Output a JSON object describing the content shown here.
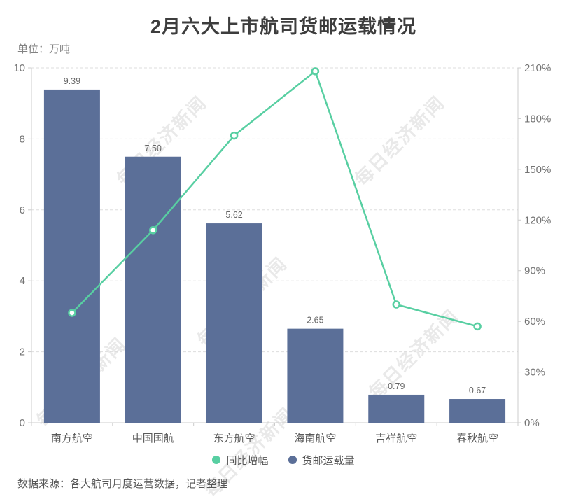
{
  "title": "2月六大上市航司货邮运载情况",
  "unit_label": "单位：万吨",
  "source_note": "数据来源：各大航司月度运营数据，记者整理",
  "watermark_text": "每日经济新闻",
  "colors": {
    "bar": "#5b6f98",
    "line": "#58cfa2",
    "grid": "#dddddd",
    "axis_line": "#cccccc",
    "axis_tick_label": "#737373",
    "category_label": "#5a5a5a",
    "bar_value_label": "#666666",
    "background": "#ffffff"
  },
  "legend": {
    "items": [
      {
        "label": "同比增幅",
        "series": "line"
      },
      {
        "label": "货邮运载量",
        "series": "bar"
      }
    ]
  },
  "chart_data": {
    "type": "bar",
    "combo": "bar+line dual axis",
    "title": "2月六大上市航司货邮运载情况",
    "unit": "万吨",
    "categories": [
      "南方航空",
      "中国国航",
      "东方航空",
      "海南航空",
      "吉祥航空",
      "春秋航空"
    ],
    "series": [
      {
        "name": "货邮运载量",
        "type": "bar",
        "axis": "left",
        "unit": "万吨",
        "values": [
          9.39,
          7.5,
          5.62,
          2.65,
          0.79,
          0.67
        ],
        "labels": [
          "9.39",
          "7.50",
          "5.62",
          "2.65",
          "0.79",
          "0.67"
        ],
        "color": "#5b6f98"
      },
      {
        "name": "同比增幅",
        "type": "line",
        "axis": "right",
        "unit": "%",
        "values": [
          65,
          114,
          170,
          208,
          70,
          57
        ],
        "color": "#58cfa2"
      }
    ],
    "left_axis": {
      "min": 0,
      "max": 10,
      "tick_values": [
        0,
        2,
        4,
        6,
        8,
        10
      ],
      "tick_labels": [
        "0",
        "2",
        "4",
        "6",
        "8",
        "10"
      ]
    },
    "right_axis": {
      "min": 0,
      "max": 210,
      "tick_values": [
        0,
        30,
        60,
        90,
        120,
        150,
        180,
        210
      ],
      "tick_labels": [
        "0%",
        "30%",
        "60%",
        "90%",
        "120%",
        "150%",
        "180%",
        "210%"
      ]
    },
    "grid": "dashed horizontal lines at left-axis ticks",
    "legend_position": "bottom center"
  }
}
